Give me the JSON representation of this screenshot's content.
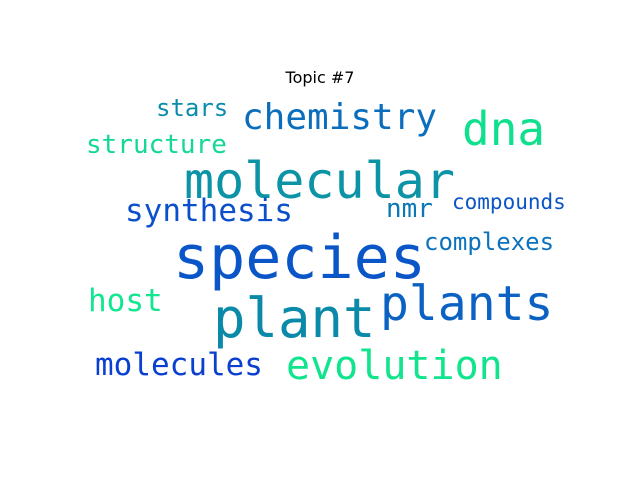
{
  "title": "Topic #7",
  "words": [
    {
      "id": "species",
      "text": "species",
      "color": "#0a55c8"
    },
    {
      "id": "plant",
      "text": "plant",
      "color": "#0a8aa8"
    },
    {
      "id": "molecular",
      "text": "molecular",
      "color": "#0c93a6"
    },
    {
      "id": "plants",
      "text": "plants",
      "color": "#0b62c2"
    },
    {
      "id": "evolution",
      "text": "evolution",
      "color": "#10e48c"
    },
    {
      "id": "dna",
      "text": "dna",
      "color": "#10e08e"
    },
    {
      "id": "chemistry",
      "text": "chemistry",
      "color": "#0b6ebd"
    },
    {
      "id": "synthesis",
      "text": "synthesis",
      "color": "#0b4fcb"
    },
    {
      "id": "molecules",
      "text": "molecules",
      "color": "#0a3fd0"
    },
    {
      "id": "host",
      "text": "host",
      "color": "#12e690"
    },
    {
      "id": "structure",
      "text": "structure",
      "color": "#14d898"
    },
    {
      "id": "nmr",
      "text": "nmr",
      "color": "#0b78b8"
    },
    {
      "id": "stars",
      "text": "stars",
      "color": "#0b8cad"
    },
    {
      "id": "complexes",
      "text": "complexes",
      "color": "#0c72bb"
    },
    {
      "id": "compounds",
      "text": "compounds",
      "color": "#0b55c6"
    }
  ]
}
